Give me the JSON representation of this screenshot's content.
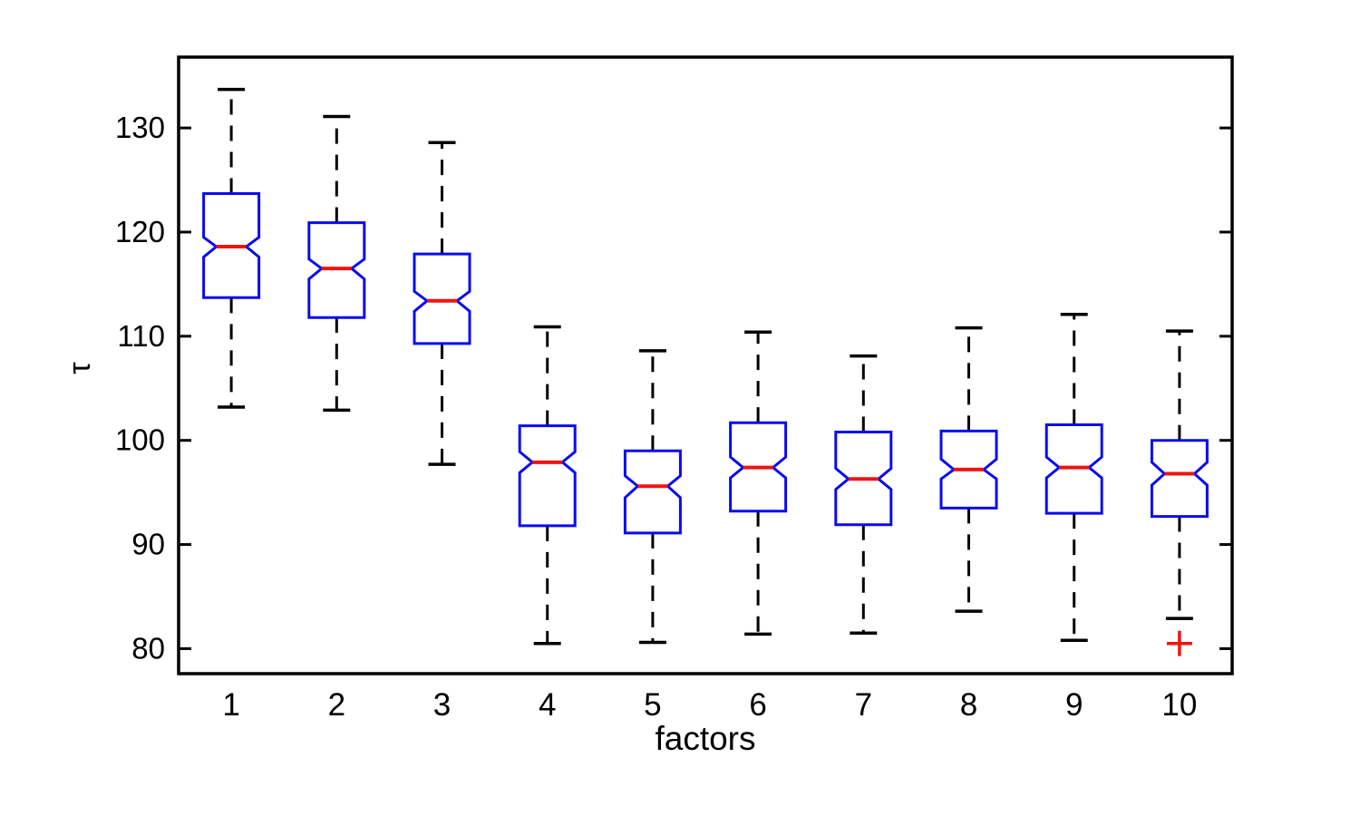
{
  "figure": {
    "background": "#ffffff"
  },
  "chart_data": {
    "type": "boxplot",
    "title": "",
    "xlabel": "factors",
    "ylabel": "τ",
    "notched": true,
    "grid": false,
    "legend": null,
    "categories": [
      "1",
      "2",
      "3",
      "4",
      "5",
      "6",
      "7",
      "8",
      "9",
      "10"
    ],
    "yticks": [
      80,
      90,
      100,
      110,
      120,
      130
    ],
    "ylim": [
      77.6,
      136.8
    ],
    "colors": {
      "box": "#0a0af0",
      "median": "#ee1512",
      "outlier": "#ee1512",
      "whisker": "#000000",
      "axis": "#000000"
    },
    "boxes": [
      {
        "category": "1",
        "whisker_low": 103.2,
        "q1": 113.7,
        "median": 118.6,
        "q3": 123.7,
        "whisker_high": 133.7,
        "notch_low": 117.6,
        "notch_high": 119.5,
        "outliers": []
      },
      {
        "category": "2",
        "whisker_low": 102.9,
        "q1": 111.8,
        "median": 116.5,
        "q3": 120.9,
        "whisker_high": 131.1,
        "notch_low": 115.5,
        "notch_high": 117.4,
        "outliers": []
      },
      {
        "category": "3",
        "whisker_low": 97.7,
        "q1": 109.3,
        "median": 113.4,
        "q3": 117.9,
        "whisker_high": 128.6,
        "notch_low": 112.4,
        "notch_high": 114.3,
        "outliers": []
      },
      {
        "category": "4",
        "whisker_low": 80.5,
        "q1": 91.8,
        "median": 97.9,
        "q3": 101.4,
        "whisker_high": 110.9,
        "notch_low": 96.9,
        "notch_high": 98.9,
        "outliers": []
      },
      {
        "category": "5",
        "whisker_low": 80.6,
        "q1": 91.1,
        "median": 95.6,
        "q3": 99.0,
        "whisker_high": 108.6,
        "notch_low": 94.5,
        "notch_high": 96.6,
        "outliers": []
      },
      {
        "category": "6",
        "whisker_low": 81.4,
        "q1": 93.2,
        "median": 97.4,
        "q3": 101.7,
        "whisker_high": 110.4,
        "notch_low": 96.4,
        "notch_high": 98.4,
        "outliers": []
      },
      {
        "category": "7",
        "whisker_low": 81.5,
        "q1": 91.9,
        "median": 96.3,
        "q3": 100.8,
        "whisker_high": 108.1,
        "notch_low": 95.3,
        "notch_high": 97.3,
        "outliers": []
      },
      {
        "category": "8",
        "whisker_low": 83.6,
        "q1": 93.5,
        "median": 97.2,
        "q3": 100.9,
        "whisker_high": 110.8,
        "notch_low": 96.3,
        "notch_high": 98.2,
        "outliers": []
      },
      {
        "category": "9",
        "whisker_low": 80.8,
        "q1": 93.0,
        "median": 97.4,
        "q3": 101.5,
        "whisker_high": 112.1,
        "notch_low": 96.4,
        "notch_high": 98.4,
        "outliers": []
      },
      {
        "category": "10",
        "whisker_low": 82.9,
        "q1": 92.7,
        "median": 96.8,
        "q3": 100.0,
        "whisker_high": 110.5,
        "notch_low": 95.7,
        "notch_high": 97.9,
        "outliers": [
          80.5
        ]
      }
    ]
  }
}
